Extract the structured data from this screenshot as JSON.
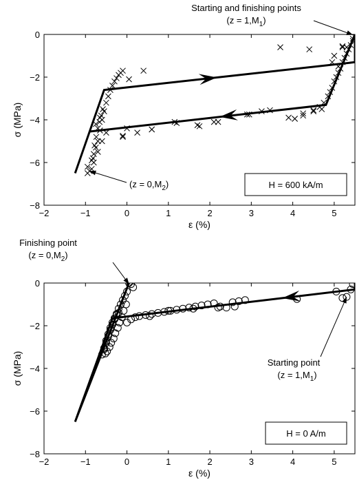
{
  "chart_data": [
    {
      "type": "scatter",
      "xlabel": "ε (%)",
      "ylabel": "σ (MPa)",
      "xlim": [
        -2,
        5.5
      ],
      "ylim": [
        -8,
        0
      ],
      "xticks": [
        "−2",
        "−1",
        "0",
        "1",
        "2",
        "3",
        "4",
        "5"
      ],
      "yticks": [
        "−8",
        "−6",
        "−4",
        "−2",
        "0"
      ],
      "grid": false,
      "marker": "x",
      "legend_box": "H = 600 kA/m",
      "annotations": [
        {
          "lines": [
            "Starting and finishing points",
            "(z = 1,M",
            "1",
            ")"
          ],
          "at": [
            5.45,
            -0.02
          ]
        },
        {
          "lines": [
            "(z = 0,M",
            "2",
            ")"
          ],
          "at": [
            -0.9,
            -6.4
          ]
        }
      ],
      "model_path": {
        "x": [
          5.5,
          4.8,
          -0.9,
          -1.25,
          -0.55,
          5.5,
          5.5
        ],
        "y": [
          0,
          -3.3,
          -4.55,
          -6.5,
          -2.6,
          -1.3,
          0
        ]
      },
      "measured": {
        "x": [
          -0.95,
          -0.95,
          -0.85,
          -0.8,
          -0.75,
          -0.7,
          -0.65,
          -0.6,
          -0.55,
          -0.5,
          -0.45,
          -0.4,
          -0.35,
          -0.3,
          -0.25,
          -0.2,
          -0.15,
          -0.1,
          -0.85,
          -0.82,
          -0.78,
          -0.74,
          -0.7,
          -0.66,
          -0.62,
          -0.58,
          -0.9,
          -0.8,
          -0.7,
          -0.6,
          -0.5,
          -0.75,
          -0.65,
          0.05,
          0.4,
          -0.1,
          0.6,
          1.2,
          1.75,
          2.1,
          2.95,
          3.45,
          4.05,
          4.25,
          4.5,
          4.65,
          4.75,
          4.85,
          4.9,
          4.95,
          5.0,
          5.05,
          5.1,
          5.15,
          5.2,
          5.25,
          5.3,
          5.35,
          5.4,
          5.45,
          5.5,
          5.2,
          4.95,
          4.4,
          3.7,
          3.9,
          0,
          -0.1,
          0.25,
          0.6,
          1.15,
          1.7,
          2.2,
          2.9,
          3.25,
          4.05,
          4.25,
          4.5,
          4.7,
          5.0,
          5.3,
          5.45,
          5.2,
          5.1
        ],
        "y": [
          -6.5,
          -6.2,
          -5.9,
          -5.6,
          -5.3,
          -5.0,
          -4.5,
          -4.0,
          -3.6,
          -3.2,
          -2.9,
          -2.6,
          -2.4,
          -2.2,
          -2.05,
          -1.9,
          -1.8,
          -1.7,
          -6.3,
          -5.8,
          -5.2,
          -4.8,
          -4.4,
          -4.1,
          -3.8,
          -3.5,
          -6.4,
          -6.0,
          -5.5,
          -5.0,
          -4.6,
          -4.2,
          -3.9,
          -2.1,
          -1.7,
          -4.75,
          -4.45,
          -4.15,
          -4.3,
          -4.1,
          -3.75,
          -3.55,
          -3.95,
          -3.7,
          -3.55,
          -3.4,
          -3.2,
          -2.9,
          -2.7,
          -2.5,
          -2.2,
          -2.0,
          -1.8,
          -1.6,
          -1.3,
          -1.1,
          -0.9,
          -0.7,
          -0.5,
          -0.3,
          -0.1,
          -0.6,
          -1.3,
          -0.7,
          -0.6,
          -3.9,
          -4.4,
          -4.8,
          -4.6,
          -4.45,
          -4.1,
          -4.25,
          -4.1,
          -3.75,
          -3.6,
          -3.95,
          -3.8,
          -3.6,
          -3.5,
          -1.0,
          -0.6,
          -0.2,
          -0.55,
          -1.5
        ]
      }
    },
    {
      "type": "scatter",
      "xlabel": "ε (%)",
      "ylabel": "σ (MPa)",
      "xlim": [
        -2,
        5.5
      ],
      "ylim": [
        -8,
        0
      ],
      "xticks": [
        "−2",
        "−1",
        "0",
        "1",
        "2",
        "3",
        "4",
        "5"
      ],
      "yticks": [
        "−8",
        "−6",
        "−4",
        "−2",
        "0"
      ],
      "grid": false,
      "marker": "o",
      "legend_box": "H = 0 A/m",
      "annotations": [
        {
          "lines": [
            "Finishing point",
            "(z = 0,M",
            "2",
            ")"
          ],
          "at": [
            0.05,
            -0.05
          ]
        },
        {
          "lines": [
            "Starting point",
            "(z = 1,M",
            "1",
            ")"
          ],
          "at": [
            5.3,
            -0.65
          ]
        }
      ],
      "model_path": {
        "x": [
          5.5,
          5.5,
          -0.35,
          -1.25,
          0.05
        ],
        "y": [
          0,
          -0.3,
          -1.65,
          -6.5,
          0
        ]
      },
      "measured": {
        "x": [
          0.05,
          0.1,
          0.15,
          0.0,
          -0.05,
          -0.1,
          -0.15,
          -0.2,
          -0.25,
          -0.3,
          -0.35,
          -0.4,
          -0.45,
          -0.5,
          -0.55,
          -0.52,
          -0.48,
          -0.42,
          -0.38,
          -0.32,
          -0.28,
          -0.22,
          -0.18,
          -0.12,
          -0.08,
          -0.02,
          -0.6,
          -0.55,
          -0.5,
          -0.45,
          -0.4,
          -0.35,
          -0.3,
          -0.25,
          -0.2,
          0.0,
          0.1,
          0.2,
          0.3,
          0.45,
          0.6,
          0.75,
          0.9,
          1.05,
          1.2,
          1.35,
          1.5,
          1.65,
          1.8,
          1.95,
          2.1,
          2.25,
          2.4,
          2.55,
          2.7,
          2.85,
          4.1,
          5.05,
          5.2,
          5.3,
          5.4,
          5.45,
          0.55,
          1.0,
          1.6,
          2.2,
          2.6
        ],
        "y": [
          0.0,
          -0.05,
          -0.2,
          -0.4,
          -0.6,
          -0.8,
          -1.0,
          -1.2,
          -1.45,
          -1.7,
          -1.95,
          -2.2,
          -2.5,
          -2.8,
          -3.1,
          -3.3,
          -3.2,
          -3.0,
          -2.8,
          -2.6,
          -2.35,
          -2.1,
          -1.85,
          -1.6,
          -1.3,
          -1.0,
          -3.35,
          -3.05,
          -2.7,
          -2.4,
          -2.1,
          -1.85,
          -1.65,
          -1.5,
          -1.4,
          -1.85,
          -1.7,
          -1.6,
          -1.55,
          -1.5,
          -1.45,
          -1.4,
          -1.35,
          -1.3,
          -1.25,
          -1.2,
          -1.15,
          -1.1,
          -1.05,
          -1.0,
          -0.95,
          -1.1,
          -1.15,
          -0.9,
          -0.85,
          -0.8,
          -0.75,
          -0.4,
          -0.7,
          -0.65,
          -0.3,
          -0.05,
          -1.55,
          -1.3,
          -1.2,
          -1.15,
          -1.1
        ]
      }
    }
  ]
}
